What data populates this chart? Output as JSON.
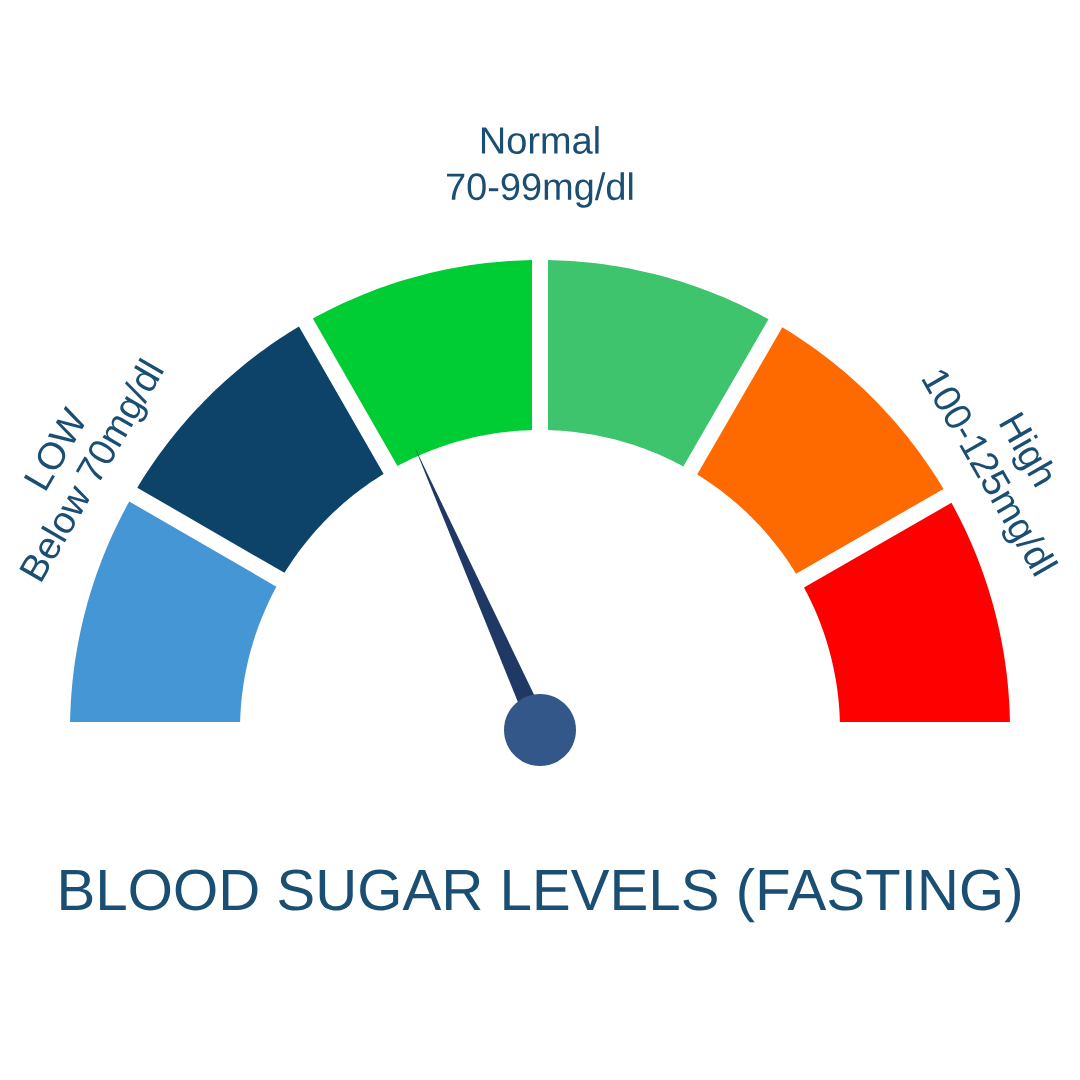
{
  "chart_data": {
    "type": "donut",
    "title": "BLOOD SUGAR LEVELS (FASTING)",
    "categories": [
      "LOW",
      null,
      "Normal",
      null,
      "High",
      null
    ],
    "values": [
      16.7,
      16.7,
      16.6,
      16.7,
      16.7,
      16.6
    ],
    "colors": [
      "#4496d4",
      "#0d4369",
      "#00cc33",
      "#3ec46d",
      "#ff6a00",
      "#ff0000"
    ],
    "needle": "Normal",
    "annotations": [
      "Below 70mg/dl",
      "70-99mg/dl",
      "100-125mg/dl"
    ]
  }
}
